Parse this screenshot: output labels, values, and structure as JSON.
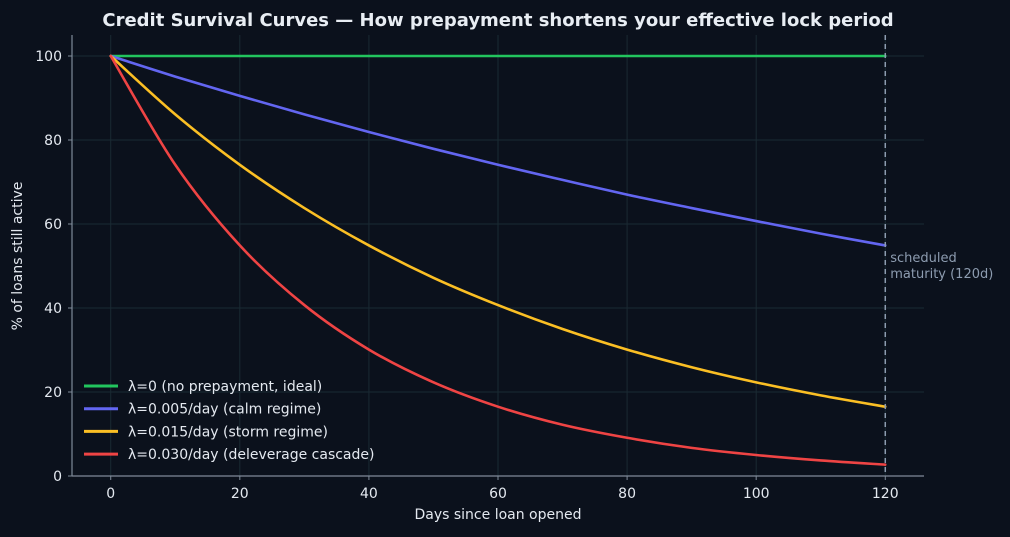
{
  "chart_data": {
    "type": "line",
    "title": "Credit Survival Curves — How prepayment shortens your effective lock period",
    "xlabel": "Days since loan opened",
    "ylabel": "% of loans still active",
    "xlim": [
      -6,
      126
    ],
    "ylim": [
      0,
      105
    ],
    "xticks": [
      "0",
      "20",
      "40",
      "60",
      "80",
      "100",
      "120"
    ],
    "yticks": [
      "0",
      "20",
      "40",
      "60",
      "80",
      "100"
    ],
    "grid": true,
    "legend_position": "lower-left",
    "x": [
      0,
      10,
      20,
      30,
      40,
      50,
      60,
      70,
      80,
      90,
      100,
      110,
      120
    ],
    "series": [
      {
        "name": "λ=0 (no prepayment, ideal)",
        "color": "#22c55e",
        "values": [
          100,
          100,
          100,
          100,
          100,
          100,
          100,
          100,
          100,
          100,
          100,
          100,
          100
        ]
      },
      {
        "name": "λ=0.005/day (calm regime)",
        "color": "#6366f1",
        "values": [
          100,
          95.1,
          90.5,
          86.1,
          81.9,
          77.9,
          74.1,
          70.5,
          67.0,
          63.8,
          60.7,
          57.7,
          54.9
        ]
      },
      {
        "name": "λ=0.015/day (storm regime)",
        "color": "#fbbf24",
        "values": [
          100,
          86.1,
          74.1,
          63.8,
          54.9,
          47.2,
          40.7,
          35.0,
          30.1,
          25.9,
          22.3,
          19.2,
          16.5
        ]
      },
      {
        "name": "λ=0.030/day (deleverage cascade)",
        "color": "#ef4444",
        "values": [
          100,
          74.1,
          54.9,
          40.7,
          30.1,
          22.3,
          16.5,
          12.2,
          9.1,
          6.7,
          5.0,
          3.7,
          2.7
        ]
      }
    ],
    "annotations": [
      {
        "x": 120,
        "lines": [
          "scheduled",
          "maturity (120d)"
        ]
      }
    ]
  }
}
